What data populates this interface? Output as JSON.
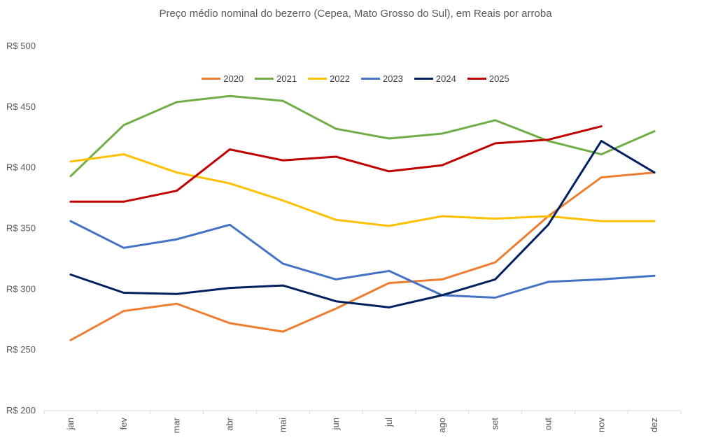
{
  "chart_data": {
    "type": "line",
    "title": "Preço médio nominal do bezerro (Cepea, Mato Grosso do Sul), em Reais por arroba",
    "xlabel": "",
    "ylabel": "",
    "categories": [
      "jan",
      "fev",
      "mar",
      "abr",
      "mai",
      "jun",
      "jul",
      "ago",
      "set",
      "out",
      "nov",
      "dez"
    ],
    "y_tick_labels": [
      "R$ 200",
      "R$ 250",
      "R$ 300",
      "R$ 350",
      "R$ 400",
      "R$ 450",
      "R$ 500"
    ],
    "ylim": [
      200,
      500
    ],
    "grid": false,
    "legend_position": "top",
    "series": [
      {
        "name": "2020",
        "color": "#ED7D31",
        "values": [
          258,
          282,
          288,
          272,
          265,
          284,
          305,
          308,
          322,
          360,
          392,
          396
        ]
      },
      {
        "name": "2021",
        "color": "#70AD47",
        "values": [
          393,
          435,
          454,
          459,
          455,
          432,
          424,
          428,
          439,
          422,
          411,
          430
        ]
      },
      {
        "name": "2022",
        "color": "#FFC000",
        "values": [
          405,
          411,
          396,
          387,
          373,
          357,
          352,
          360,
          358,
          360,
          356,
          356
        ]
      },
      {
        "name": "2023",
        "color": "#4472C4",
        "values": [
          356,
          334,
          341,
          353,
          321,
          308,
          315,
          295,
          293,
          306,
          308,
          311
        ]
      },
      {
        "name": "2024",
        "color": "#002060",
        "values": [
          312,
          297,
          296,
          301,
          303,
          290,
          285,
          295,
          308,
          353,
          422,
          396
        ]
      },
      {
        "name": "2025",
        "color": "#C00000",
        "values": [
          372,
          372,
          381,
          415,
          406,
          409,
          397,
          402,
          420,
          423,
          434,
          null
        ]
      }
    ]
  }
}
